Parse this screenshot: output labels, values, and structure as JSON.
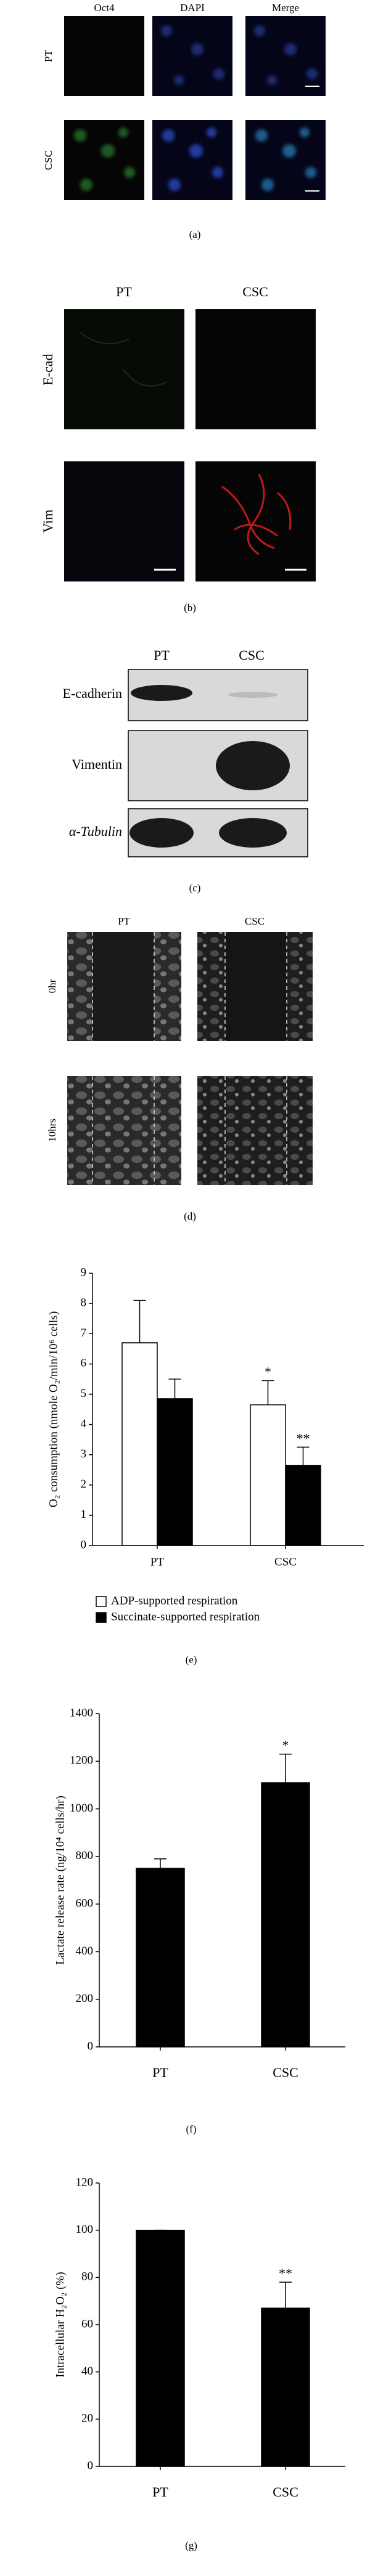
{
  "figure": {
    "a": {
      "columns": [
        "Oct4",
        "DAPI",
        "Merge"
      ],
      "rows": [
        "PT",
        "CSC"
      ],
      "caption": "(a)"
    },
    "b": {
      "columns": [
        "PT",
        "CSC"
      ],
      "rows": [
        "E-cad",
        "Vim"
      ],
      "caption": "(b)"
    },
    "c": {
      "columns": [
        "PT",
        "CSC"
      ],
      "rows": [
        "E-cadherin",
        "Vimentin",
        "α-Tubulin"
      ],
      "caption": "(c)"
    },
    "d": {
      "columns": [
        "PT",
        "CSC"
      ],
      "rows": [
        "0hr",
        "10hrs"
      ],
      "caption": "(d)"
    }
  },
  "chart_data": [
    {
      "type": "bar",
      "ylabel": "O₂ consumption (nmole O₂/min/10⁶ cells)",
      "categories": [
        "PT",
        "CSC"
      ],
      "series": [
        {
          "name": "ADP-supported respiration",
          "color": "#ffffff",
          "values": [
            6.7,
            4.65
          ],
          "errors": [
            1.4,
            0.8
          ],
          "sig_labels": [
            null,
            "*"
          ]
        },
        {
          "name": "Succinate-supported respiration",
          "color": "#000000",
          "values": [
            4.85,
            2.65
          ],
          "errors": [
            0.65,
            0.6
          ],
          "sig_labels": [
            null,
            "**"
          ]
        }
      ],
      "ylim": [
        0,
        9
      ],
      "yticks": [
        0,
        1,
        2,
        3,
        4,
        5,
        6,
        7,
        8,
        9
      ],
      "caption": "(e)"
    },
    {
      "type": "bar",
      "ylabel": "Lactate release rate (ng/10⁴ cells/hr)",
      "categories": [
        "PT",
        "CSC"
      ],
      "series": [
        {
          "color": "#000000",
          "values": [
            750,
            1110
          ],
          "errors": [
            40,
            120
          ],
          "sig_labels": [
            null,
            "*"
          ]
        }
      ],
      "ylim": [
        0,
        1400
      ],
      "yticks": [
        0,
        200,
        400,
        600,
        800,
        1000,
        1200,
        1400
      ],
      "caption": "(f)"
    },
    {
      "type": "bar",
      "ylabel": "Intracellular H₂O₂ (%)",
      "categories": [
        "PT",
        "CSC"
      ],
      "series": [
        {
          "color": "#000000",
          "values": [
            100,
            67
          ],
          "errors": [
            0,
            11
          ],
          "sig_labels": [
            null,
            "**"
          ]
        }
      ],
      "ylim": [
        0,
        120
      ],
      "yticks": [
        0,
        20,
        40,
        60,
        80,
        100,
        120
      ],
      "caption": "(g)"
    }
  ]
}
